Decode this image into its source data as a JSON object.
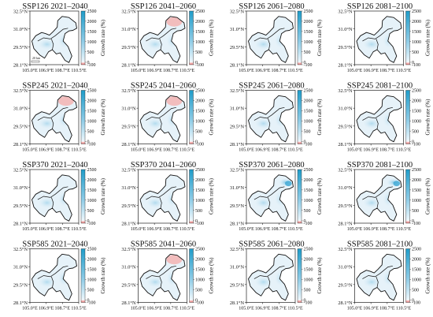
{
  "figure": {
    "colorbar": {
      "ticks": [
        "2500",
        "2000",
        "1500",
        "1000",
        "500",
        "0",
        "-100"
      ],
      "label": "Growth rate (%)",
      "colors": {
        "top": "#1f9cc9",
        "mid": "#e4f2fa",
        "zero": "#ffffff",
        "bottom": "#e98282"
      }
    },
    "y_ticks": [
      "32.5°N",
      "31.0°N",
      "29.5°N",
      "28.1°N"
    ],
    "x_ticks": [
      "105.0°E",
      "106.9°E",
      "108.7°E",
      "110.5°E"
    ],
    "scale_label": "20 km",
    "panels": [
      {
        "title": "SSP126 2021–2040",
        "scenario": "SSP126",
        "period": "2021–2040",
        "shading": "light-blue"
      },
      {
        "title": "SSP126 2041–2060",
        "scenario": "SSP126",
        "period": "2041–2060",
        "shading": "light-blue, red in north"
      },
      {
        "title": "SSP126 2061–2080",
        "scenario": "SSP126",
        "period": "2061–2080",
        "shading": "light-blue"
      },
      {
        "title": "SSP126 2081–2100",
        "scenario": "SSP126",
        "period": "2081–2100",
        "shading": "light-blue"
      },
      {
        "title": "SSP245 2021–2040",
        "scenario": "SSP245",
        "period": "2021–2040",
        "shading": "light-blue, red in north"
      },
      {
        "title": "SSP245 2041–2060",
        "scenario": "SSP245",
        "period": "2041–2060",
        "shading": "light-blue, red in north"
      },
      {
        "title": "SSP245 2061–2080",
        "scenario": "SSP245",
        "period": "2061–2080",
        "shading": "light-blue"
      },
      {
        "title": "SSP245 2081–2100",
        "scenario": "SSP245",
        "period": "2081–2100",
        "shading": "light-blue"
      },
      {
        "title": "SSP370 2021–2040",
        "scenario": "SSP370",
        "period": "2021–2040",
        "shading": "light-blue"
      },
      {
        "title": "SSP370 2041–2060",
        "scenario": "SSP370",
        "period": "2041–2060",
        "shading": "light-blue"
      },
      {
        "title": "SSP370 2061–2080",
        "scenario": "SSP370",
        "period": "2061–2080",
        "shading": "blue in north-east"
      },
      {
        "title": "SSP370 2081–2100",
        "scenario": "SSP370",
        "period": "2081–2100",
        "shading": "blue in north-east"
      },
      {
        "title": "SSP585 2021–2040",
        "scenario": "SSP585",
        "period": "2021–2040",
        "shading": "light-blue"
      },
      {
        "title": "SSP585 2041–2060",
        "scenario": "SSP585",
        "period": "2041–2060",
        "shading": "light-blue, red in north"
      },
      {
        "title": "SSP585 2061–2080",
        "scenario": "SSP585",
        "period": "2061–2080",
        "shading": "light-blue"
      },
      {
        "title": "SSP585 2081–2100",
        "scenario": "SSP585",
        "period": "2081–2100",
        "shading": "light-blue"
      }
    ]
  }
}
